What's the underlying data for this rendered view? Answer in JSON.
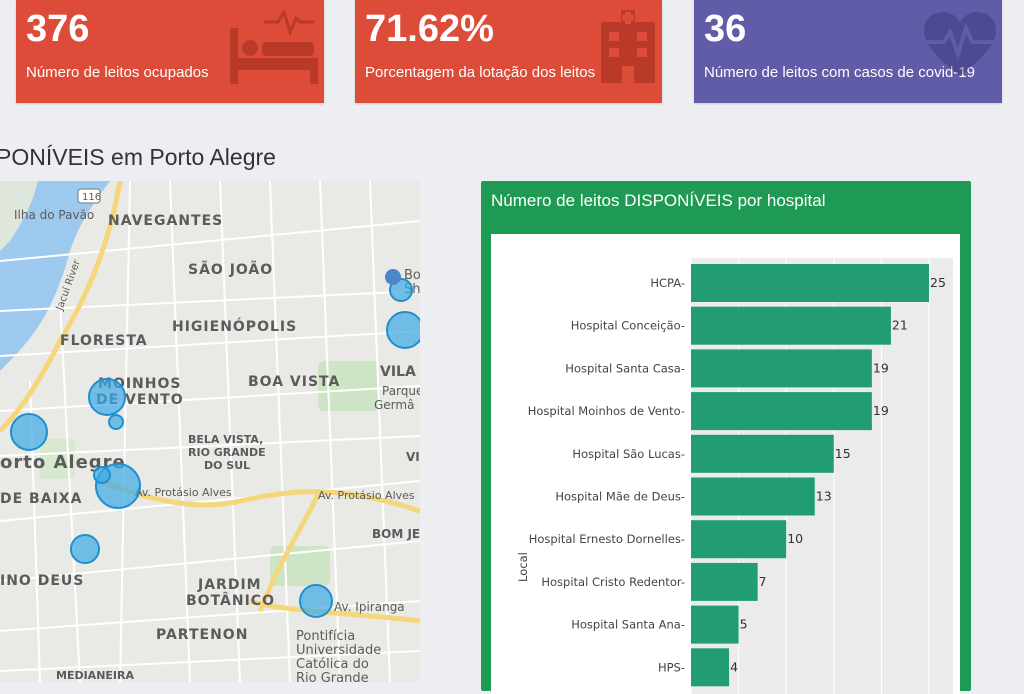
{
  "cards": [
    {
      "value": "376",
      "label": "Número de leitos ocupados",
      "color": "#dd4b39",
      "icon": "hospital-bed-icon"
    },
    {
      "value": "71.62%",
      "label": "Porcentagem da lotação dos leitos",
      "color": "#dd4b39",
      "icon": "hospital-building-icon"
    },
    {
      "value": "36",
      "label": "Número de leitos com casos de covid-19",
      "color": "#605ca8",
      "icon": "heartbeat-icon"
    }
  ],
  "map": {
    "title": "PONÍVEIS em Porto Alegre",
    "labels": {
      "ilha": "Ilha do Pavão",
      "navegantes": "NAVEGANTES",
      "sao_joao": "SÃO JOÃO",
      "higienopolis": "HIGIENÓPOLIS",
      "floresta": "FLORESTA",
      "moinhos1": "MOINHOS",
      "moinhos2": "DE VENTO",
      "boa_vista": "BOA VISTA",
      "vila": "VILA",
      "parque1": "Parque",
      "parque2": "Germâ",
      "bela1": "BELA VISTA,",
      "bela2": "RIO GRANDE",
      "bela3": "DO SUL",
      "porto": "orto Alegre",
      "baixa": "DE BAIXA",
      "av_protasio1": "Av. Protásio Alves",
      "av_protasio2": "Av. Protásio Alves",
      "bom_jesus": "BOM JE",
      "menino_deus": "INO DEUS",
      "jardim1": "JARDIM",
      "jardim2": "BOTÂNICO",
      "av_ipiranga": "Av. Ipiranga",
      "partenon": "PARTENON",
      "puc1": "Pontifícia",
      "puc2": "Universidade",
      "puc3": "Católica do",
      "puc4": "Rio Grande",
      "medianeira": "MEDIANEIRA",
      "jacui": "Jacuí River",
      "route": "116",
      "bo": "Bo",
      "sh": "Sh",
      "vi": "VI"
    }
  },
  "chart": {
    "title": "Número de leitos DISPONÍVEIS por hospital",
    "ylabel": "Local",
    "bar_color": "#229c73"
  },
  "chart_data": {
    "type": "bar",
    "orientation": "horizontal",
    "categories": [
      "HCPA",
      "Hospital Conceição",
      "Hospital Santa Casa",
      "Hospital Moinhos de Vento",
      "Hospital São Lucas",
      "Hospital Mãe de Deus",
      "Hospital Ernesto Dornelles",
      "Hospital Cristo Redentor",
      "Hospital Santa Ana",
      "HPS"
    ],
    "values": [
      25,
      21,
      19,
      19,
      15,
      13,
      10,
      7,
      5,
      4
    ],
    "title": "Número de leitos DISPONÍVEIS por hospital",
    "xlabel": "",
    "ylabel": "Local",
    "xlim": [
      0,
      25
    ]
  }
}
